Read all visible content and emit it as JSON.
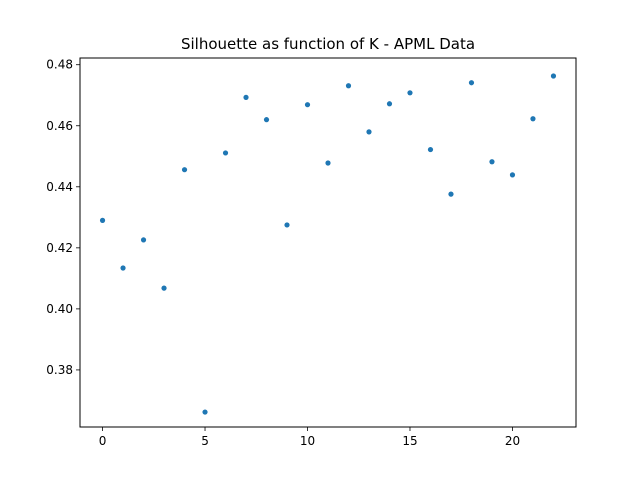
{
  "chart_data": {
    "type": "scatter",
    "title": "Silhouette as function of K - APML Data",
    "xlabel": "",
    "ylabel": "",
    "xlim": [
      -1.1,
      23.1
    ],
    "ylim": [
      0.3613,
      0.4822
    ],
    "x_ticks": [
      0,
      5,
      10,
      15,
      20
    ],
    "y_ticks": [
      0.38,
      0.4,
      0.42,
      0.44,
      0.46,
      0.48
    ],
    "grid": false,
    "marker_color": "#1f77b4",
    "series": [
      {
        "x": [
          0,
          1,
          2,
          3,
          4,
          5,
          6,
          7,
          8,
          9,
          10,
          11,
          12,
          13,
          14,
          15,
          16,
          17,
          18,
          19,
          20,
          21,
          22
        ],
        "y": [
          0.429,
          0.4134,
          0.4226,
          0.4068,
          0.4456,
          0.3662,
          0.4511,
          0.4693,
          0.462,
          0.4275,
          0.4669,
          0.4478,
          0.4731,
          0.458,
          0.4672,
          0.4708,
          0.4522,
          0.4376,
          0.4741,
          0.4482,
          0.4439,
          0.4623,
          0.4763
        ]
      }
    ]
  }
}
